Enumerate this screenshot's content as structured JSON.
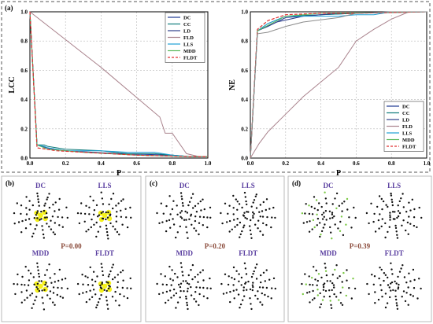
{
  "panel_a": {
    "label": "(a)"
  },
  "chart_data": [
    {
      "type": "line",
      "ylabel": "LCC",
      "xlabel": "P",
      "xlim": [
        0.0,
        1.0
      ],
      "ylim": [
        0.0,
        1.0
      ],
      "xticks": [
        "0.0",
        "0.2",
        "0.4",
        "0.6",
        "0.8",
        "1.0"
      ],
      "yticks": [
        "0.0",
        "0.2",
        "0.4",
        "0.6",
        "0.8",
        "1.0"
      ],
      "grid": true,
      "legend": "top-right",
      "series": [
        {
          "name": "DC",
          "color": "#1f3a93",
          "dash": false,
          "points": [
            [
              0,
              1
            ],
            [
              0.04,
              0.09
            ],
            [
              0.1,
              0.07
            ],
            [
              0.2,
              0.05
            ],
            [
              0.5,
              0.03
            ],
            [
              0.8,
              0.02
            ],
            [
              0.9,
              0.01
            ],
            [
              1.0,
              0.01
            ]
          ]
        },
        {
          "name": "CC",
          "color": "#0c7a7a",
          "dash": false,
          "points": [
            [
              0,
              1
            ],
            [
              0.04,
              0.09
            ],
            [
              0.08,
              0.09
            ],
            [
              0.1,
              0.08
            ],
            [
              0.2,
              0.06
            ],
            [
              0.4,
              0.05
            ],
            [
              0.55,
              0.03
            ],
            [
              0.7,
              0.03
            ],
            [
              0.8,
              0.02
            ],
            [
              0.9,
              0.01
            ],
            [
              1.0,
              0.01
            ]
          ]
        },
        {
          "name": "LD",
          "color": "#2e3f8a",
          "dash": false,
          "points": [
            [
              0,
              1
            ],
            [
              0.04,
              0.09
            ],
            [
              0.12,
              0.06
            ],
            [
              0.3,
              0.04
            ],
            [
              0.6,
              0.02
            ],
            [
              0.9,
              0.01
            ],
            [
              1.0,
              0.01
            ]
          ]
        },
        {
          "name": "FLD",
          "color": "#a9828c",
          "dash": false,
          "points": [
            [
              0,
              1
            ],
            [
              0.4,
              0.62
            ],
            [
              0.73,
              0.28
            ],
            [
              0.76,
              0.17
            ],
            [
              0.8,
              0.17
            ],
            [
              0.88,
              0.03
            ],
            [
              0.95,
              0.01
            ],
            [
              1.0,
              0.01
            ]
          ]
        },
        {
          "name": "LLS",
          "color": "#1e9fd6",
          "dash": false,
          "points": [
            [
              0,
              1
            ],
            [
              0.04,
              0.09
            ],
            [
              0.08,
              0.08
            ],
            [
              0.1,
              0.07
            ],
            [
              0.2,
              0.05
            ],
            [
              0.4,
              0.05
            ],
            [
              0.55,
              0.04
            ],
            [
              0.7,
              0.04
            ],
            [
              0.8,
              0.02
            ],
            [
              0.9,
              0.01
            ],
            [
              1.0,
              0.01
            ]
          ]
        },
        {
          "name": "MDD",
          "color": "#5ab85a",
          "dash": false,
          "points": [
            [
              0,
              1
            ],
            [
              0.04,
              0.09
            ],
            [
              0.1,
              0.06
            ],
            [
              0.3,
              0.04
            ],
            [
              0.6,
              0.02
            ],
            [
              0.9,
              0.01
            ],
            [
              1.0,
              0.01
            ]
          ]
        },
        {
          "name": "FLDT",
          "color": "#e03030",
          "dash": true,
          "points": [
            [
              0,
              1
            ],
            [
              0.04,
              0.07
            ],
            [
              0.15,
              0.05
            ],
            [
              0.3,
              0.04
            ],
            [
              0.6,
              0.02
            ],
            [
              0.9,
              0.01
            ],
            [
              1.0,
              0.01
            ]
          ]
        }
      ]
    },
    {
      "type": "line",
      "ylabel": "NE",
      "xlabel": "P",
      "xlim": [
        0.0,
        1.0
      ],
      "ylim": [
        0.0,
        1.0
      ],
      "xticks": [
        "0.0",
        "0.2",
        "0.4",
        "0.6",
        "0.8",
        "1.0"
      ],
      "yticks": [
        "0.0",
        "0.2",
        "0.4",
        "0.6",
        "0.8",
        "1.0"
      ],
      "grid": true,
      "legend": "bottom-right",
      "series": [
        {
          "name": "DC",
          "color": "#1f3a93",
          "dash": false,
          "points": [
            [
              0,
              0
            ],
            [
              0.04,
              0.87
            ],
            [
              0.1,
              0.9
            ],
            [
              0.2,
              0.96
            ],
            [
              0.4,
              0.98
            ],
            [
              0.6,
              0.99
            ],
            [
              0.8,
              1.0
            ],
            [
              1.0,
              1.0
            ]
          ]
        },
        {
          "name": "CC",
          "color": "#0c7a7a",
          "dash": false,
          "points": [
            [
              0,
              0
            ],
            [
              0.04,
              0.87
            ],
            [
              0.1,
              0.92
            ],
            [
              0.2,
              0.97
            ],
            [
              0.4,
              0.98
            ],
            [
              0.6,
              0.99
            ],
            [
              1.0,
              1.0
            ]
          ]
        },
        {
          "name": "LD",
          "color": "#2e3f8a",
          "dash": false,
          "points": [
            [
              0,
              0
            ],
            [
              0.04,
              0.87
            ],
            [
              0.15,
              0.93
            ],
            [
              0.3,
              0.97
            ],
            [
              0.5,
              0.99
            ],
            [
              1.0,
              1.0
            ]
          ]
        },
        {
          "name": "FLD",
          "color": "#a9828c",
          "dash": false,
          "points": [
            [
              0,
              0
            ],
            [
              0.05,
              0.1
            ],
            [
              0.1,
              0.18
            ],
            [
              0.2,
              0.3
            ],
            [
              0.3,
              0.42
            ],
            [
              0.4,
              0.52
            ],
            [
              0.5,
              0.62
            ],
            [
              0.6,
              0.8
            ],
            [
              0.7,
              0.88
            ],
            [
              0.8,
              0.95
            ],
            [
              0.9,
              1.0
            ],
            [
              1.0,
              1.0
            ]
          ]
        },
        {
          "name": "LLS",
          "color": "#1e9fd6",
          "dash": false,
          "points": [
            [
              0,
              0
            ],
            [
              0.04,
              0.87
            ],
            [
              0.1,
              0.92
            ],
            [
              0.2,
              0.97
            ],
            [
              0.4,
              0.97
            ],
            [
              0.5,
              0.97
            ],
            [
              0.6,
              0.98
            ],
            [
              0.7,
              0.98
            ],
            [
              0.8,
              1.0
            ],
            [
              1.0,
              1.0
            ]
          ]
        },
        {
          "name": "MDD",
          "color": "#5ab85a",
          "dash": false,
          "points": [
            [
              0,
              0
            ],
            [
              0.04,
              0.87
            ],
            [
              0.2,
              0.97
            ],
            [
              0.4,
              0.99
            ],
            [
              1.0,
              1.0
            ]
          ]
        },
        {
          "name": "FLDT",
          "color": "#e03030",
          "dash": true,
          "points": [
            [
              0,
              0
            ],
            [
              0.04,
              0.88
            ],
            [
              0.1,
              0.94
            ],
            [
              0.2,
              0.98
            ],
            [
              0.4,
              0.99
            ],
            [
              0.6,
              0.99
            ],
            [
              1.0,
              1.0
            ]
          ]
        },
        {
          "name": "",
          "color": "#8c8c8c",
          "dash": false,
          "points": [
            [
              0,
              0
            ],
            [
              0.04,
              0.85
            ],
            [
              0.1,
              0.86
            ],
            [
              0.2,
              0.9
            ],
            [
              0.3,
              0.93
            ],
            [
              0.5,
              0.96
            ],
            [
              0.6,
              0.99
            ],
            [
              0.8,
              1.0
            ],
            [
              1.0,
              1.0
            ]
          ]
        }
      ]
    }
  ],
  "networks": [
    {
      "label": "(b)",
      "p_label": "P=0.00",
      "titles": [
        "DC",
        "LLS",
        "MDD",
        "FLDT"
      ],
      "highlight": [
        "yellow",
        "yellow",
        "yellow",
        "yellow"
      ]
    },
    {
      "label": "(c)",
      "p_label": "P=0.20",
      "titles": [
        "DC",
        "LLS",
        "MDD",
        "FLDT"
      ],
      "highlight": [
        "none",
        "none",
        "none",
        "none"
      ]
    },
    {
      "label": "(d)",
      "p_label": "P=0.39",
      "titles": [
        "DC",
        "LLS",
        "MDD",
        "FLDT"
      ],
      "highlight": [
        "green",
        "none",
        "green",
        "none"
      ]
    }
  ]
}
